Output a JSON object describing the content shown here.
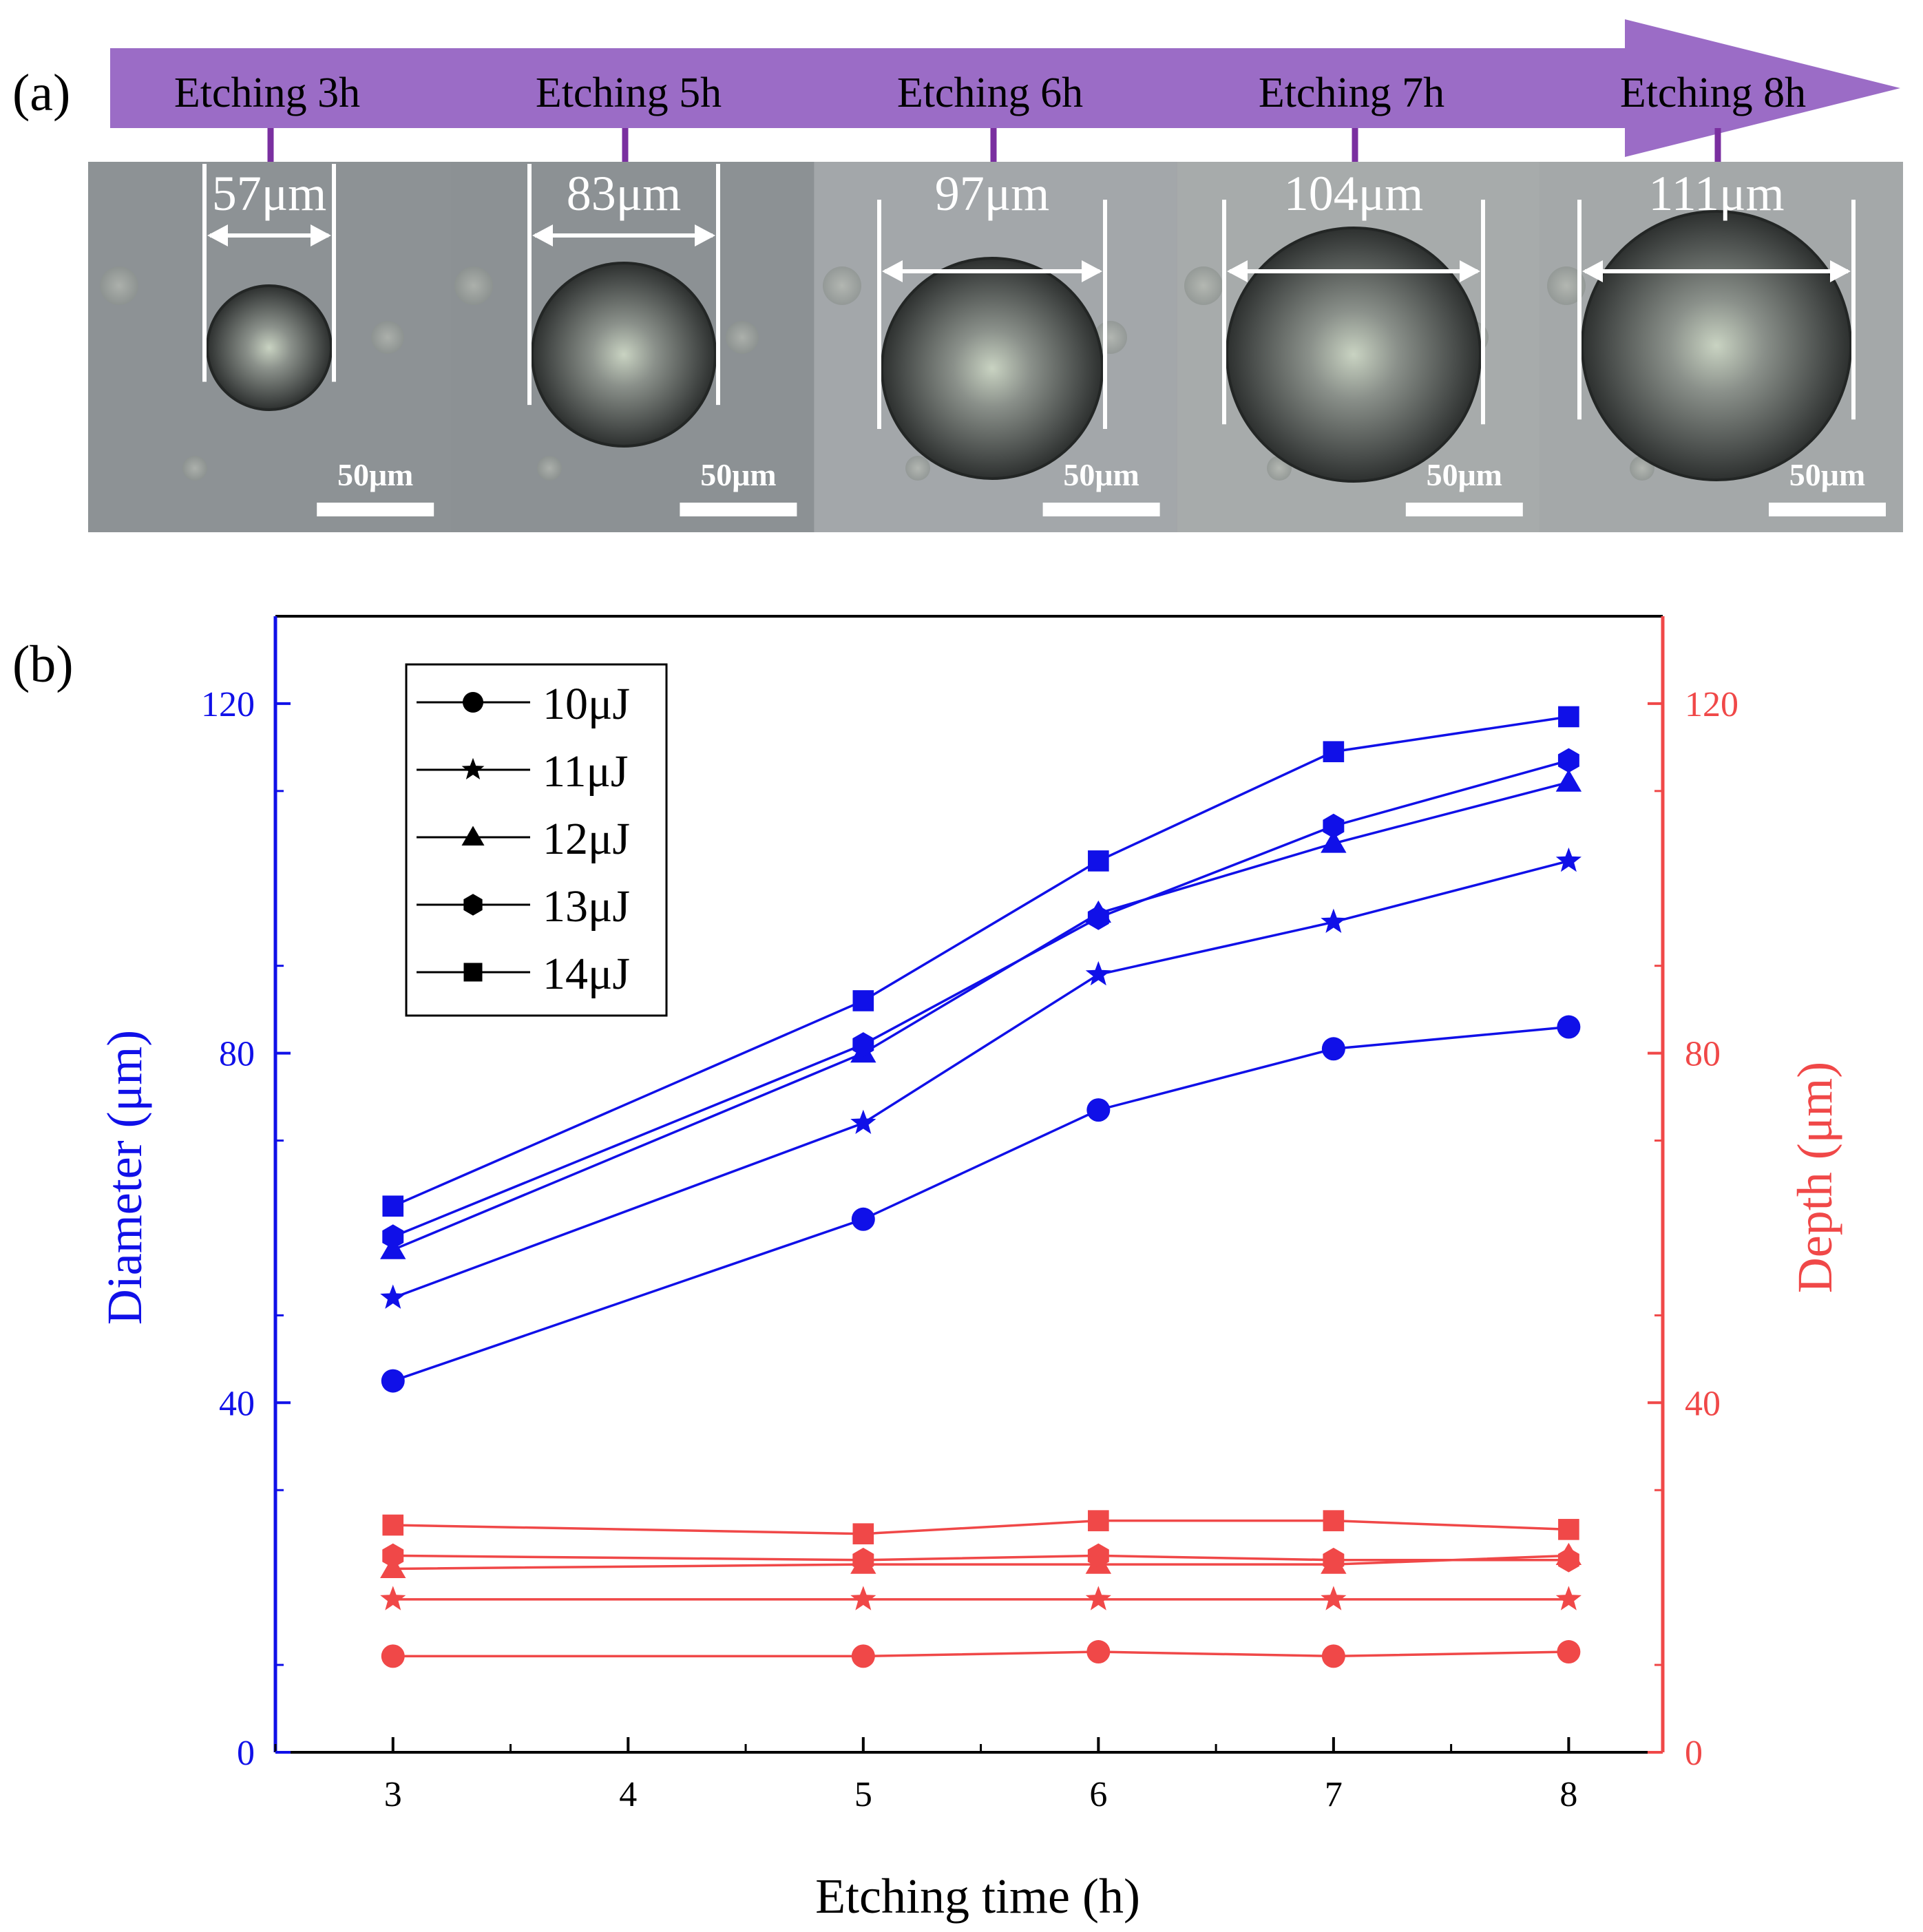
{
  "panel_a": {
    "label": "(a)",
    "stages": [
      {
        "label": "Etching 3h",
        "diameter_label": "57μm",
        "scale_label": "50μm",
        "diameter_um": 57
      },
      {
        "label": "Etching 5h",
        "diameter_label": "83μm",
        "scale_label": "50μm",
        "diameter_um": 83
      },
      {
        "label": "Etching 6h",
        "diameter_label": "97μm",
        "scale_label": "50μm",
        "diameter_um": 97
      },
      {
        "label": "Etching 7h",
        "diameter_label": "104μm",
        "scale_label": "50μm",
        "diameter_um": 104
      },
      {
        "label": "Etching 8h",
        "diameter_label": "111μm",
        "scale_label": "50μm",
        "diameter_um": 111
      }
    ],
    "colors": {
      "arrow": "#9b6cc6",
      "tick": "#7a2fa0",
      "microscope_bg": "#8e9397",
      "hole": "#3a3d3c",
      "hole_center": "#c9d3c2",
      "annotation": "#ffffff"
    }
  },
  "chart_data": {
    "label": "(b)",
    "type": "line",
    "xlabel": "Etching time (h)",
    "ylabel_left": "Diameter (μm)",
    "ylabel_right": "Depth (μm)",
    "xlim": [
      2.5,
      8.4
    ],
    "ylim": [
      0,
      130
    ],
    "xticks": [
      "3",
      "4",
      "5",
      "6",
      "7",
      "8"
    ],
    "yticks_left": [
      "0",
      "40",
      "80",
      "120"
    ],
    "yticks_right": [
      "0",
      "40",
      "80",
      "120"
    ],
    "x": [
      3,
      5,
      6,
      7,
      8
    ],
    "legend": [
      {
        "name": "10μJ",
        "marker": "circle"
      },
      {
        "name": "11μJ",
        "marker": "star"
      },
      {
        "name": "12μJ",
        "marker": "triangle"
      },
      {
        "name": "13μJ",
        "marker": "hexagon"
      },
      {
        "name": "14μJ",
        "marker": "square"
      }
    ],
    "diameter_series": [
      {
        "name": "10μJ",
        "marker": "circle",
        "values": [
          42.5,
          61,
          73.5,
          80.5,
          83
        ]
      },
      {
        "name": "11μJ",
        "marker": "star",
        "values": [
          52,
          72,
          89,
          95,
          102
        ]
      },
      {
        "name": "12μJ",
        "marker": "triangle",
        "values": [
          57.5,
          80,
          96,
          104,
          111
        ]
      },
      {
        "name": "13μJ",
        "marker": "hexagon",
        "values": [
          59,
          81,
          95.5,
          106,
          113.5
        ]
      },
      {
        "name": "14μJ",
        "marker": "square",
        "values": [
          62.5,
          86,
          102,
          114.5,
          118.5
        ]
      }
    ],
    "depth_series": [
      {
        "name": "10μJ",
        "marker": "circle",
        "values": [
          11,
          11,
          11.5,
          11,
          11.5
        ]
      },
      {
        "name": "11μJ",
        "marker": "star",
        "values": [
          17.5,
          17.5,
          17.5,
          17.5,
          17.5
        ]
      },
      {
        "name": "12μJ",
        "marker": "triangle",
        "values": [
          21,
          21.5,
          21.5,
          21.5,
          22.5
        ]
      },
      {
        "name": "13μJ",
        "marker": "hexagon",
        "values": [
          22.5,
          22,
          22.5,
          22,
          22
        ]
      },
      {
        "name": "14μJ",
        "marker": "square",
        "values": [
          26,
          25,
          26.5,
          26.5,
          25.5
        ]
      }
    ],
    "colors": {
      "left_axis": "#1010e8",
      "right_axis": "#f04848",
      "diameter": "#1010e8",
      "depth": "#f04848",
      "frame": "#000000",
      "legend": "#000000"
    }
  }
}
